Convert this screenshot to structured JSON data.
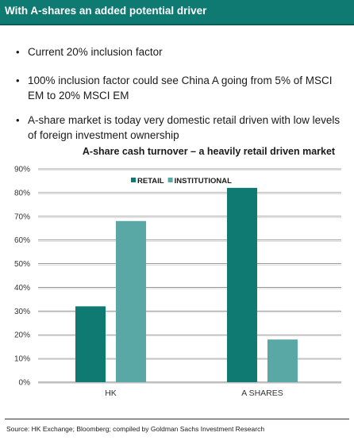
{
  "slide": {
    "title": "With A-shares an added potential driver",
    "bullets": [
      {
        "text": "Current 20% inclusion factor"
      },
      {
        "text": "100% inclusion factor could see China A going from 5% of MSCI EM to 20% MSCI EM"
      },
      {
        "text": "A-share market is today very domestic retail driven with low levels of foreign investment ownership"
      }
    ],
    "source": "Source: HK Exchange; Bloomberg; compiled by Goldman Sachs Investment Research"
  },
  "colors": {
    "header": "#0e7a72",
    "retail": "#0e7a72",
    "institutional": "#5aa8a6",
    "grid": "#8a8a8a"
  },
  "chart_data": {
    "type": "bar",
    "title": "A-share cash turnover – a heavily retail driven market",
    "categories": [
      "HK",
      "A SHARES"
    ],
    "series": [
      {
        "name": "RETAIL",
        "values": [
          32,
          82
        ]
      },
      {
        "name": "INSTITUTIONAL",
        "values": [
          68,
          18
        ]
      }
    ],
    "yticks": [
      "0%",
      "10%",
      "20%",
      "30%",
      "40%",
      "50%",
      "60%",
      "70%",
      "80%",
      "90%"
    ],
    "ylim": [
      0,
      90
    ],
    "legend": "top-center",
    "grid": true
  }
}
